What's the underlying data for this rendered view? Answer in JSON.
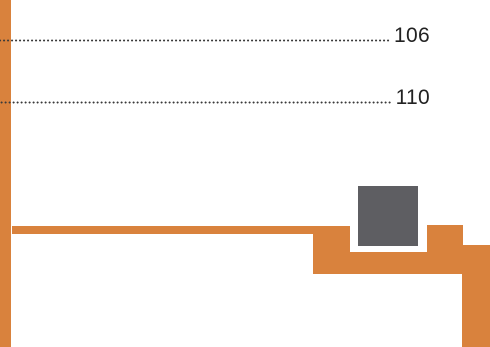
{
  "toc": {
    "entries": [
      {
        "page": "106"
      },
      {
        "page": "110"
      }
    ]
  },
  "colors": {
    "accent": "#d9823d",
    "block": "#5e5e62",
    "text": "#222222",
    "background": "#ffffff"
  }
}
